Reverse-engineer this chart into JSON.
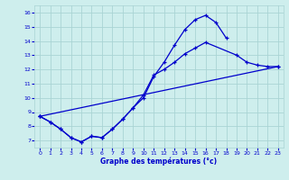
{
  "xlabel": "Graphe des températures (°c)",
  "x": [
    0,
    1,
    2,
    3,
    4,
    5,
    6,
    7,
    8,
    9,
    10,
    11,
    12,
    13,
    14,
    15,
    16,
    17,
    18,
    19,
    20,
    21,
    22,
    23
  ],
  "line1": [
    8.7,
    8.3,
    7.8,
    7.2,
    6.9,
    7.3,
    7.2,
    7.8,
    8.5,
    9.3,
    10.0,
    11.5,
    12.5,
    13.7,
    14.8,
    15.5,
    15.8,
    15.3,
    14.2,
    null,
    null,
    null,
    null,
    null
  ],
  "line2": [
    8.7,
    8.3,
    7.8,
    7.2,
    6.9,
    7.3,
    7.2,
    7.8,
    8.5,
    9.3,
    10.2,
    11.6,
    12.0,
    12.5,
    13.1,
    13.5,
    13.9,
    null,
    null,
    13.0,
    12.5,
    12.3,
    12.2,
    12.2
  ],
  "line3_x": [
    0,
    23
  ],
  "line3_y": [
    8.7,
    12.2
  ],
  "bg_color": "#ceeeed",
  "grid_color": "#aad4d4",
  "line_color": "#0000cc",
  "ylim": [
    6.5,
    16.5
  ],
  "xlim": [
    -0.5,
    23.5
  ],
  "yticks": [
    7,
    8,
    9,
    10,
    11,
    12,
    13,
    14,
    15,
    16
  ],
  "xticks": [
    0,
    1,
    2,
    3,
    4,
    5,
    6,
    7,
    8,
    9,
    10,
    11,
    12,
    13,
    14,
    15,
    16,
    17,
    18,
    19,
    20,
    21,
    22,
    23
  ]
}
